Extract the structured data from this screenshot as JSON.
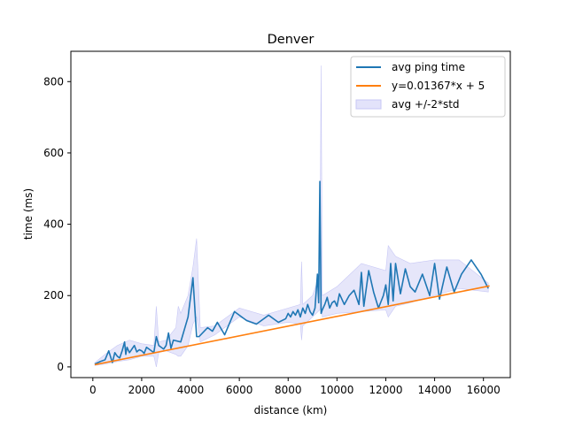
{
  "chart_data": {
    "type": "line",
    "title": "Denver",
    "xlabel": "distance (km)",
    "ylabel": "time (ms)",
    "xlim": [
      -900,
      17100
    ],
    "ylim": [
      -30,
      885
    ],
    "xticks": [
      0,
      2000,
      4000,
      6000,
      8000,
      10000,
      12000,
      14000,
      16000
    ],
    "yticks": [
      0,
      200,
      400,
      600,
      800
    ],
    "grid": false,
    "legend_position": "top-right",
    "legend": [
      {
        "label": "avg ping time",
        "kind": "line",
        "color": "#1f77b4"
      },
      {
        "label": "y=0.01367*x + 5",
        "kind": "line",
        "color": "#ff7f0e"
      },
      {
        "label": "avg +/-2*std",
        "kind": "patch",
        "color": "#c7c7f5"
      }
    ],
    "series": [
      {
        "name": "avg ping time",
        "color": "#1f77b4",
        "x": [
          80,
          300,
          500,
          650,
          800,
          900,
          1000,
          1100,
          1200,
          1300,
          1350,
          1400,
          1500,
          1600,
          1700,
          1800,
          1900,
          2000,
          2100,
          2200,
          2300,
          2400,
          2500,
          2600,
          2700,
          2800,
          2900,
          3000,
          3100,
          3200,
          3300,
          3600,
          3900,
          4100,
          4250,
          4350,
          4700,
          4900,
          5100,
          5400,
          5800,
          6300,
          6700,
          7000,
          7200,
          7600,
          7900,
          8000,
          8100,
          8200,
          8300,
          8400,
          8500,
          8600,
          8700,
          8800,
          8900,
          9000,
          9100,
          9200,
          9250,
          9300,
          9350,
          9400,
          9500,
          9600,
          9700,
          9800,
          9900,
          10000,
          10100,
          10300,
          10500,
          10700,
          10900,
          11000,
          11100,
          11300,
          11500,
          11700,
          11900,
          12000,
          12100,
          12200,
          12300,
          12400,
          12600,
          12800,
          13000,
          13200,
          13500,
          13800,
          14000,
          14200,
          14500,
          14800,
          15100,
          15500,
          15900,
          16200
        ],
        "values": [
          8,
          15,
          20,
          45,
          12,
          40,
          30,
          25,
          45,
          70,
          35,
          55,
          40,
          50,
          60,
          42,
          48,
          45,
          38,
          55,
          50,
          45,
          40,
          85,
          60,
          55,
          50,
          60,
          95,
          52,
          75,
          70,
          140,
          250,
          85,
          85,
          110,
          100,
          125,
          90,
          155,
          130,
          120,
          135,
          145,
          125,
          135,
          150,
          140,
          155,
          145,
          160,
          140,
          165,
          150,
          175,
          155,
          145,
          165,
          260,
          180,
          520,
          150,
          160,
          175,
          195,
          165,
          180,
          185,
          170,
          205,
          175,
          200,
          215,
          175,
          265,
          170,
          270,
          210,
          165,
          200,
          230,
          175,
          290,
          185,
          290,
          205,
          275,
          225,
          210,
          260,
          200,
          290,
          190,
          280,
          210,
          260,
          300,
          260,
          220
        ]
      },
      {
        "name": "y=0.01367*x + 5",
        "color": "#ff7f0e",
        "x": [
          80,
          16250
        ],
        "values": [
          6.1,
          227.1
        ]
      },
      {
        "name": "avg +/-2*std",
        "color": "#c7c7f5",
        "type": "area",
        "x": [
          80,
          500,
          1000,
          1500,
          2000,
          2500,
          2600,
          2700,
          3000,
          3400,
          3500,
          3600,
          3900,
          4100,
          4250,
          4400,
          5000,
          6000,
          7000,
          8000,
          8500,
          8550,
          8600,
          9000,
          9300,
          9350,
          9400,
          10000,
          11000,
          12000,
          12100,
          12400,
          13000,
          14000,
          15000,
          16200
        ],
        "upper": [
          12,
          35,
          60,
          75,
          65,
          60,
          170,
          70,
          75,
          110,
          170,
          150,
          200,
          280,
          360,
          110,
          115,
          165,
          145,
          165,
          175,
          295,
          175,
          200,
          260,
          845,
          200,
          225,
          290,
          270,
          340,
          310,
          290,
          300,
          300,
          235
        ],
        "lower": [
          4,
          8,
          15,
          20,
          30,
          30,
          0,
          40,
          45,
          35,
          30,
          30,
          60,
          120,
          140,
          70,
          90,
          140,
          115,
          125,
          120,
          75,
          115,
          140,
          160,
          200,
          140,
          150,
          155,
          160,
          140,
          170,
          180,
          200,
          220,
          210
        ]
      }
    ]
  }
}
